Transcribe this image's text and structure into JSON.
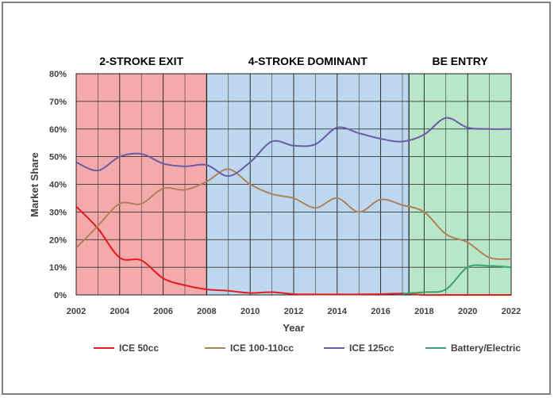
{
  "chart_data": {
    "type": "line",
    "xlabel": "Year",
    "ylabel": "Market Share",
    "xlim": [
      2002,
      2022
    ],
    "ylim": [
      0,
      0.8
    ],
    "x_ticks": [
      "2002",
      "2004",
      "2006",
      "2008",
      "2010",
      "2012",
      "2014",
      "2016",
      "2018",
      "2020",
      "2022"
    ],
    "y_ticks": [
      "0%",
      "10%",
      "20%",
      "30%",
      "40%",
      "50%",
      "60%",
      "70%",
      "80%"
    ],
    "grid": true,
    "legend_position": "bottom",
    "phases": [
      {
        "label": "2-STROKE EXIT",
        "start": 2002,
        "end": 2008,
        "color": "#f4aaaa"
      },
      {
        "label": "4-STROKE DOMINANT",
        "start": 2008,
        "end": 2017.3,
        "color": "#bdd7ee"
      },
      {
        "label": "BE ENTRY",
        "start": 2017.3,
        "end": 2022,
        "color": "#b8e6c8"
      }
    ],
    "x": [
      2002,
      2003,
      2004,
      2005,
      2006,
      2007,
      2008,
      2009,
      2010,
      2011,
      2012,
      2013,
      2014,
      2015,
      2016,
      2017,
      2018,
      2019,
      2020,
      2021,
      2022
    ],
    "series": [
      {
        "name": "ICE 50cc",
        "color": "#e41a1c",
        "values": [
          0.32,
          0.24,
          0.135,
          0.125,
          0.06,
          0.035,
          0.02,
          0.015,
          0.007,
          0.01,
          0.003,
          0.002,
          0.002,
          0.002,
          0.003,
          0.005,
          0.0,
          0.0,
          0.0,
          0.0,
          0.0
        ]
      },
      {
        "name": "ICE 100-110cc",
        "color": "#b08058",
        "values": [
          0.17,
          0.25,
          0.33,
          0.33,
          0.385,
          0.38,
          0.41,
          0.455,
          0.4,
          0.365,
          0.35,
          0.315,
          0.35,
          0.3,
          0.345,
          0.325,
          0.3,
          0.22,
          0.19,
          0.135,
          0.13
        ]
      },
      {
        "name": "ICE 125cc",
        "color": "#6b5aa6",
        "values": [
          0.48,
          0.45,
          0.5,
          0.51,
          0.475,
          0.465,
          0.47,
          0.43,
          0.48,
          0.555,
          0.54,
          0.545,
          0.605,
          0.585,
          0.565,
          0.555,
          0.58,
          0.64,
          0.605,
          0.6,
          0.6
        ]
      },
      {
        "name": "Battery/Electric",
        "color": "#3aa36a",
        "values": [
          null,
          null,
          null,
          null,
          null,
          null,
          null,
          null,
          null,
          null,
          null,
          null,
          null,
          null,
          null,
          0.005,
          0.01,
          0.02,
          0.1,
          0.105,
          0.1
        ]
      }
    ]
  }
}
